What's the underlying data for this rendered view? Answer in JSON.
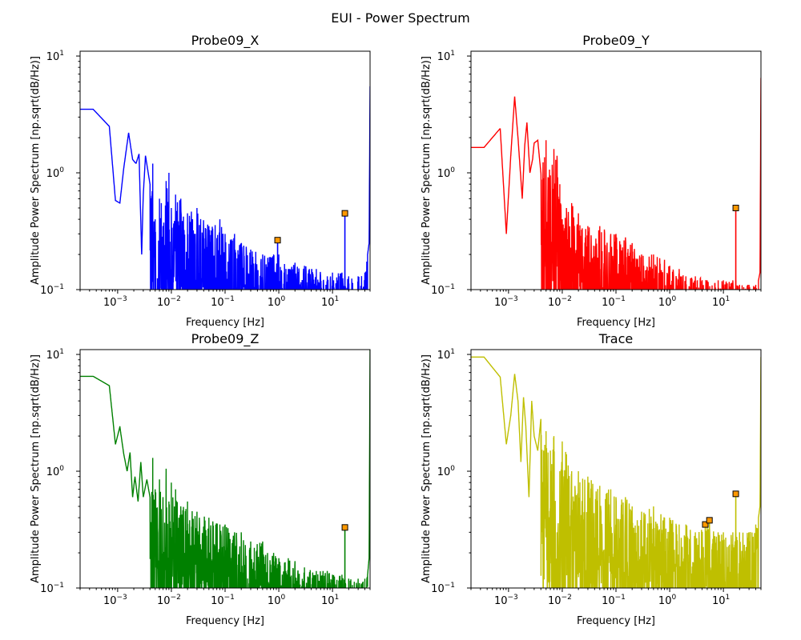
{
  "figure": {
    "title": "EUI - Power Spectrum"
  },
  "chart_data": [
    {
      "type": "line",
      "title": "Probe09_X",
      "xlabel": "Frequency [Hz]",
      "ylabel": "Amplitude Power Spectrum [np.sqrt(dB/Hz)]",
      "xscale": "log",
      "yscale": "log",
      "xlim": [
        0.0002,
        50
      ],
      "ylim": [
        0.1,
        11
      ],
      "xticks": [
        {
          "base": "10",
          "exp": "−3",
          "value": 0.001
        },
        {
          "base": "10",
          "exp": "−2",
          "value": 0.01
        },
        {
          "base": "10",
          "exp": "−1",
          "value": 0.1
        },
        {
          "base": "10",
          "exp": "0",
          "value": 1
        },
        {
          "base": "10",
          "exp": "1",
          "value": 10
        }
      ],
      "yticks": [
        {
          "base": "10",
          "exp": "−1",
          "value": 0.1
        },
        {
          "base": "10",
          "exp": "0",
          "value": 1
        },
        {
          "base": "10",
          "exp": "1",
          "value": 10
        }
      ],
      "color": "#0000ff",
      "series": [
        {
          "x": [
            0.0002,
            0.00035,
            0.0007,
            0.00091,
            0.0011,
            0.0013,
            0.0016,
            0.0019,
            0.0022,
            0.0025,
            0.0028,
            0.003,
            0.0033,
            0.004,
            0.0045,
            0.005,
            0.0055,
            0.006,
            0.0065,
            0.007,
            0.008,
            0.009,
            0.01,
            0.012,
            0.015,
            0.02,
            0.03,
            0.05,
            0.08,
            0.1,
            0.15,
            0.2,
            0.3,
            0.5,
            0.8,
            1.0,
            1.5,
            2.0,
            3.0,
            5.0,
            8.0,
            10,
            15,
            17,
            20,
            30,
            40,
            45,
            48,
            50
          ],
          "y": [
            3.5,
            3.5,
            2.5,
            0.58,
            0.55,
            1.1,
            2.2,
            1.3,
            1.2,
            1.45,
            0.2,
            0.65,
            1.4,
            0.8,
            1.2,
            0.4,
            0.125,
            0.6,
            0.55,
            0.35,
            0.85,
            1.0,
            0.5,
            0.65,
            0.6,
            0.45,
            0.5,
            0.35,
            0.4,
            0.3,
            0.3,
            0.25,
            0.22,
            0.2,
            0.2,
            0.2,
            0.15,
            0.17,
            0.16,
            0.15,
            0.13,
            0.14,
            0.14,
            0.13,
            0.13,
            0.13,
            0.14,
            0.2,
            0.25,
            5.5
          ],
          "noise_floor": 0.1
        }
      ],
      "markers": [
        {
          "x": 0.95,
          "y": 0.265
        },
        {
          "x": 17,
          "y": 0.45
        }
      ]
    },
    {
      "type": "line",
      "title": "Probe09_Y",
      "xlabel": "Frequency [Hz]",
      "ylabel": "Amplitude Power Spectrum [np.sqrt(dB/Hz)]",
      "xscale": "log",
      "yscale": "log",
      "xlim": [
        0.0002,
        50
      ],
      "ylim": [
        0.1,
        11
      ],
      "xticks": [
        {
          "base": "10",
          "exp": "−3",
          "value": 0.001
        },
        {
          "base": "10",
          "exp": "−2",
          "value": 0.01
        },
        {
          "base": "10",
          "exp": "−1",
          "value": 0.1
        },
        {
          "base": "10",
          "exp": "0",
          "value": 1
        },
        {
          "base": "10",
          "exp": "1",
          "value": 10
        }
      ],
      "yticks": [
        {
          "base": "10",
          "exp": "−1",
          "value": 0.1
        },
        {
          "base": "10",
          "exp": "0",
          "value": 1
        },
        {
          "base": "10",
          "exp": "1",
          "value": 10
        }
      ],
      "color": "#ff0000",
      "series": [
        {
          "x": [
            0.0002,
            0.00035,
            0.0007,
            0.00091,
            0.0011,
            0.0013,
            0.0015,
            0.0018,
            0.002,
            0.0022,
            0.0025,
            0.0028,
            0.003,
            0.0035,
            0.004,
            0.005,
            0.006,
            0.007,
            0.008,
            0.009,
            0.01,
            0.012,
            0.015,
            0.02,
            0.03,
            0.05,
            0.08,
            0.1,
            0.15,
            0.2,
            0.3,
            0.5,
            0.8,
            1.0,
            1.5,
            2.0,
            3.0,
            5.0,
            8.0,
            10,
            15,
            17,
            20,
            30,
            40,
            45,
            48,
            50
          ],
          "y": [
            1.65,
            1.65,
            2.4,
            0.3,
            1.4,
            4.5,
            2.0,
            0.6,
            1.7,
            2.7,
            1.0,
            1.3,
            1.8,
            1.9,
            1.0,
            1.9,
            0.95,
            1.6,
            1.4,
            0.8,
            0.4,
            0.5,
            0.55,
            0.45,
            0.35,
            0.35,
            0.3,
            0.3,
            0.28,
            0.25,
            0.2,
            0.2,
            0.18,
            0.16,
            0.15,
            0.13,
            0.13,
            0.12,
            0.12,
            0.12,
            0.12,
            0.12,
            0.11,
            0.11,
            0.11,
            0.12,
            0.14,
            6.5
          ],
          "noise_floor": 0.1
        }
      ],
      "markers": [
        {
          "x": 17,
          "y": 0.5
        }
      ]
    },
    {
      "type": "line",
      "title": "Probe09_Z",
      "xlabel": "Frequency [Hz]",
      "ylabel": "Amplitude Power Spectrum [np.sqrt(dB/Hz)]",
      "xscale": "log",
      "yscale": "log",
      "xlim": [
        0.0002,
        50
      ],
      "ylim": [
        0.1,
        11
      ],
      "xticks": [
        {
          "base": "10",
          "exp": "−3",
          "value": 0.001
        },
        {
          "base": "10",
          "exp": "−2",
          "value": 0.01
        },
        {
          "base": "10",
          "exp": "−1",
          "value": 0.1
        },
        {
          "base": "10",
          "exp": "0",
          "value": 1
        },
        {
          "base": "10",
          "exp": "1",
          "value": 10
        }
      ],
      "yticks": [
        {
          "base": "10",
          "exp": "−1",
          "value": 0.1
        },
        {
          "base": "10",
          "exp": "0",
          "value": 1
        },
        {
          "base": "10",
          "exp": "1",
          "value": 10
        }
      ],
      "color": "#008000",
      "series": [
        {
          "x": [
            0.0002,
            0.00035,
            0.0007,
            0.00091,
            0.0011,
            0.0013,
            0.0015,
            0.0017,
            0.0019,
            0.0021,
            0.0024,
            0.0027,
            0.003,
            0.0035,
            0.004,
            0.0045,
            0.005,
            0.006,
            0.007,
            0.008,
            0.009,
            0.01,
            0.012,
            0.015,
            0.02,
            0.03,
            0.05,
            0.08,
            0.1,
            0.15,
            0.2,
            0.3,
            0.5,
            0.8,
            1.0,
            1.5,
            2.0,
            3.0,
            5.0,
            8.0,
            10,
            15,
            17,
            20,
            30,
            40,
            45,
            48,
            50
          ],
          "y": [
            6.5,
            6.5,
            5.4,
            1.7,
            2.4,
            1.4,
            1.0,
            1.45,
            0.6,
            0.9,
            0.55,
            1.2,
            0.6,
            0.85,
            0.6,
            1.3,
            0.7,
            0.85,
            0.6,
            1.05,
            0.55,
            0.8,
            0.7,
            0.5,
            0.55,
            0.45,
            0.4,
            0.35,
            0.35,
            0.3,
            0.3,
            0.25,
            0.25,
            0.2,
            0.18,
            0.18,
            0.17,
            0.15,
            0.14,
            0.14,
            0.13,
            0.13,
            0.12,
            0.12,
            0.12,
            0.12,
            0.13,
            0.18,
            11
          ],
          "noise_floor": 0.1
        }
      ],
      "markers": [
        {
          "x": 17,
          "y": 0.33
        }
      ]
    },
    {
      "type": "line",
      "title": "Trace",
      "xlabel": "Frequency [Hz]",
      "ylabel": "Amplitude Power Spectrum [np.sqrt(dB/Hz)]",
      "xscale": "log",
      "yscale": "log",
      "xlim": [
        0.0002,
        50
      ],
      "ylim": [
        0.1,
        11
      ],
      "xticks": [
        {
          "base": "10",
          "exp": "−3",
          "value": 0.001
        },
        {
          "base": "10",
          "exp": "−2",
          "value": 0.01
        },
        {
          "base": "10",
          "exp": "−1",
          "value": 0.1
        },
        {
          "base": "10",
          "exp": "0",
          "value": 1
        },
        {
          "base": "10",
          "exp": "1",
          "value": 10
        }
      ],
      "yticks": [
        {
          "base": "10",
          "exp": "−1",
          "value": 0.1
        },
        {
          "base": "10",
          "exp": "0",
          "value": 1
        },
        {
          "base": "10",
          "exp": "1",
          "value": 10
        }
      ],
      "color": "#bfbf00",
      "series": [
        {
          "x": [
            0.0002,
            0.00035,
            0.0007,
            0.00091,
            0.0011,
            0.0013,
            0.0015,
            0.0017,
            0.0019,
            0.0021,
            0.0024,
            0.0027,
            0.003,
            0.0035,
            0.004,
            0.0045,
            0.005,
            0.006,
            0.007,
            0.008,
            0.009,
            0.01,
            0.012,
            0.015,
            0.02,
            0.03,
            0.05,
            0.08,
            0.1,
            0.15,
            0.2,
            0.3,
            0.5,
            0.8,
            1.0,
            1.5,
            2.0,
            3.0,
            5.0,
            8.0,
            10,
            15,
            17,
            20,
            30,
            40,
            45,
            48,
            50
          ],
          "y": [
            9.5,
            9.5,
            6.4,
            1.7,
            3.0,
            6.8,
            4.0,
            1.2,
            4.3,
            2.4,
            0.6,
            4.0,
            2.0,
            1.5,
            2.8,
            1.5,
            2.2,
            1.5,
            2.0,
            0.3,
            1.0,
            1.8,
            1.4,
            1.0,
            1.0,
            0.9,
            0.75,
            0.7,
            0.6,
            0.6,
            0.5,
            0.45,
            0.5,
            0.4,
            0.4,
            0.35,
            0.35,
            0.3,
            0.35,
            0.3,
            0.3,
            0.3,
            0.3,
            0.3,
            0.3,
            0.35,
            0.4,
            0.5,
            9.5
          ],
          "noise_floor": 0.1
        }
      ],
      "markers": [
        {
          "x": 4.6,
          "y": 0.35
        },
        {
          "x": 5.5,
          "y": 0.38
        },
        {
          "x": 17,
          "y": 0.64
        }
      ]
    }
  ]
}
